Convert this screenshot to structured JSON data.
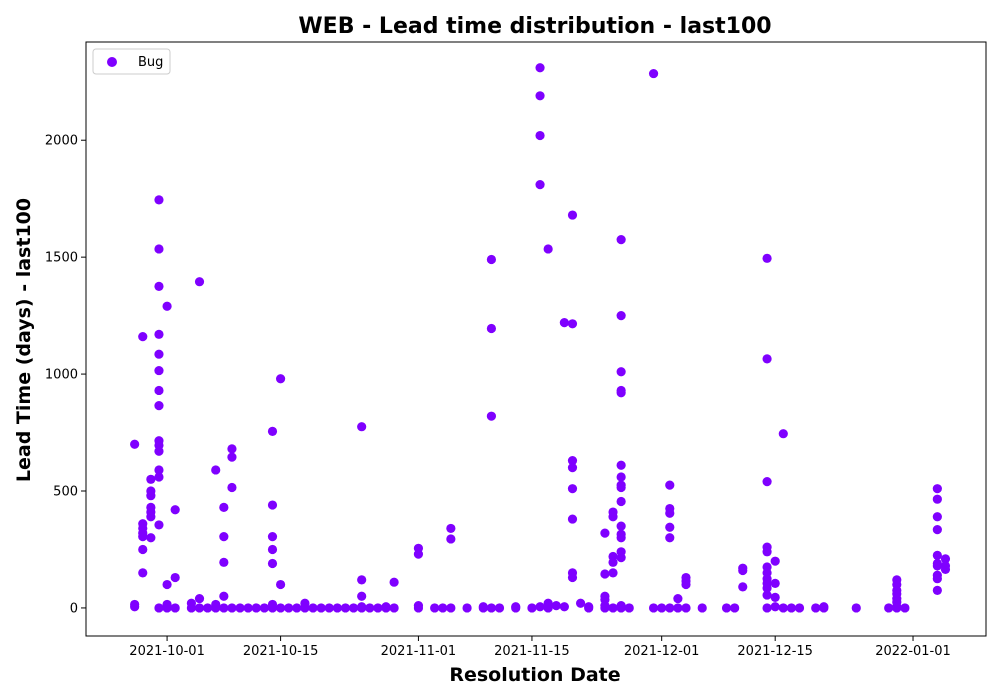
{
  "chart_data": {
    "type": "scatter",
    "title": "WEB - Lead time distribution - last100",
    "xlabel": "Resolution Date",
    "ylabel": "Lead Time (days) - last100",
    "x_type": "date",
    "xlim": [
      "2021-09-21",
      "2022-01-10"
    ],
    "ylim": [
      -120,
      2420
    ],
    "x_ticks": [
      "2021-10-01",
      "2021-10-15",
      "2021-11-01",
      "2021-11-15",
      "2021-12-01",
      "2021-12-15",
      "2022-01-01"
    ],
    "y_ticks": [
      0,
      500,
      1000,
      1500,
      2000
    ],
    "grid": false,
    "legend": {
      "position": "top-left",
      "entries": [
        "Bug"
      ]
    },
    "series": [
      {
        "name": "Bug",
        "color": "#7f00ff",
        "points": [
          [
            "2021-09-27",
            700
          ],
          [
            "2021-09-27",
            15
          ],
          [
            "2021-09-27",
            5
          ],
          [
            "2021-09-28",
            1160
          ],
          [
            "2021-09-28",
            360
          ],
          [
            "2021-09-28",
            340
          ],
          [
            "2021-09-28",
            320
          ],
          [
            "2021-09-28",
            305
          ],
          [
            "2021-09-28",
            250
          ],
          [
            "2021-09-28",
            150
          ],
          [
            "2021-09-29",
            550
          ],
          [
            "2021-09-29",
            500
          ],
          [
            "2021-09-29",
            480
          ],
          [
            "2021-09-29",
            430
          ],
          [
            "2021-09-29",
            410
          ],
          [
            "2021-09-29",
            390
          ],
          [
            "2021-09-29",
            300
          ],
          [
            "2021-09-30",
            1745
          ],
          [
            "2021-09-30",
            1535
          ],
          [
            "2021-09-30",
            1375
          ],
          [
            "2021-09-30",
            1170
          ],
          [
            "2021-09-30",
            1085
          ],
          [
            "2021-09-30",
            1015
          ],
          [
            "2021-09-30",
            930
          ],
          [
            "2021-09-30",
            865
          ],
          [
            "2021-09-30",
            715
          ],
          [
            "2021-09-30",
            695
          ],
          [
            "2021-09-30",
            670
          ],
          [
            "2021-09-30",
            590
          ],
          [
            "2021-09-30",
            560
          ],
          [
            "2021-09-30",
            355
          ],
          [
            "2021-09-30",
            0
          ],
          [
            "2021-10-01",
            1290
          ],
          [
            "2021-10-01",
            100
          ],
          [
            "2021-10-01",
            15
          ],
          [
            "2021-10-01",
            0
          ],
          [
            "2021-10-02",
            420
          ],
          [
            "2021-10-02",
            130
          ],
          [
            "2021-10-02",
            0
          ],
          [
            "2021-10-04",
            20
          ],
          [
            "2021-10-04",
            0
          ],
          [
            "2021-10-05",
            1395
          ],
          [
            "2021-10-05",
            40
          ],
          [
            "2021-10-05",
            0
          ],
          [
            "2021-10-06",
            0
          ],
          [
            "2021-10-07",
            590
          ],
          [
            "2021-10-07",
            15
          ],
          [
            "2021-10-07",
            0
          ],
          [
            "2021-10-08",
            430
          ],
          [
            "2021-10-08",
            305
          ],
          [
            "2021-10-08",
            195
          ],
          [
            "2021-10-08",
            50
          ],
          [
            "2021-10-08",
            0
          ],
          [
            "2021-10-09",
            680
          ],
          [
            "2021-10-09",
            645
          ],
          [
            "2021-10-09",
            515
          ],
          [
            "2021-10-09",
            0
          ],
          [
            "2021-10-10",
            0
          ],
          [
            "2021-10-11",
            0
          ],
          [
            "2021-10-12",
            0
          ],
          [
            "2021-10-13",
            0
          ],
          [
            "2021-10-14",
            755
          ],
          [
            "2021-10-14",
            440
          ],
          [
            "2021-10-14",
            305
          ],
          [
            "2021-10-14",
            250
          ],
          [
            "2021-10-14",
            190
          ],
          [
            "2021-10-14",
            15
          ],
          [
            "2021-10-14",
            0
          ],
          [
            "2021-10-15",
            980
          ],
          [
            "2021-10-15",
            100
          ],
          [
            "2021-10-15",
            0
          ],
          [
            "2021-10-16",
            0
          ],
          [
            "2021-10-17",
            0
          ],
          [
            "2021-10-18",
            20
          ],
          [
            "2021-10-18",
            0
          ],
          [
            "2021-10-19",
            0
          ],
          [
            "2021-10-20",
            0
          ],
          [
            "2021-10-21",
            0
          ],
          [
            "2021-10-22",
            0
          ],
          [
            "2021-10-23",
            0
          ],
          [
            "2021-10-24",
            0
          ],
          [
            "2021-10-25",
            775
          ],
          [
            "2021-10-25",
            120
          ],
          [
            "2021-10-25",
            50
          ],
          [
            "2021-10-25",
            5
          ],
          [
            "2021-10-25",
            0
          ],
          [
            "2021-10-26",
            0
          ],
          [
            "2021-10-27",
            0
          ],
          [
            "2021-10-28",
            5
          ],
          [
            "2021-10-28",
            0
          ],
          [
            "2021-10-29",
            110
          ],
          [
            "2021-10-29",
            0
          ],
          [
            "2021-11-01",
            255
          ],
          [
            "2021-11-01",
            230
          ],
          [
            "2021-11-01",
            10
          ],
          [
            "2021-11-01",
            0
          ],
          [
            "2021-11-03",
            0
          ],
          [
            "2021-11-04",
            0
          ],
          [
            "2021-11-05",
            340
          ],
          [
            "2021-11-05",
            295
          ],
          [
            "2021-11-05",
            0
          ],
          [
            "2021-11-07",
            0
          ],
          [
            "2021-11-09",
            5
          ],
          [
            "2021-11-09",
            0
          ],
          [
            "2021-11-10",
            1490
          ],
          [
            "2021-11-10",
            1195
          ],
          [
            "2021-11-10",
            820
          ],
          [
            "2021-11-10",
            0
          ],
          [
            "2021-11-11",
            0
          ],
          [
            "2021-11-13",
            5
          ],
          [
            "2021-11-13",
            0
          ],
          [
            "2021-11-15",
            0
          ],
          [
            "2021-11-16",
            2310
          ],
          [
            "2021-11-16",
            2190
          ],
          [
            "2021-11-16",
            2020
          ],
          [
            "2021-11-16",
            1810
          ],
          [
            "2021-11-16",
            5
          ],
          [
            "2021-11-17",
            1535
          ],
          [
            "2021-11-17",
            20
          ],
          [
            "2021-11-17",
            0
          ],
          [
            "2021-11-18",
            10
          ],
          [
            "2021-11-19",
            1220
          ],
          [
            "2021-11-19",
            5
          ],
          [
            "2021-11-20",
            1680
          ],
          [
            "2021-11-20",
            1215
          ],
          [
            "2021-11-20",
            630
          ],
          [
            "2021-11-20",
            600
          ],
          [
            "2021-11-20",
            510
          ],
          [
            "2021-11-20",
            380
          ],
          [
            "2021-11-20",
            150
          ],
          [
            "2021-11-20",
            130
          ],
          [
            "2021-11-21",
            20
          ],
          [
            "2021-11-22",
            5
          ],
          [
            "2021-11-22",
            0
          ],
          [
            "2021-11-24",
            320
          ],
          [
            "2021-11-24",
            145
          ],
          [
            "2021-11-24",
            50
          ],
          [
            "2021-11-24",
            35
          ],
          [
            "2021-11-24",
            10
          ],
          [
            "2021-11-24",
            0
          ],
          [
            "2021-11-25",
            410
          ],
          [
            "2021-11-25",
            390
          ],
          [
            "2021-11-25",
            220
          ],
          [
            "2021-11-25",
            195
          ],
          [
            "2021-11-25",
            150
          ],
          [
            "2021-11-25",
            0
          ],
          [
            "2021-11-26",
            1575
          ],
          [
            "2021-11-26",
            1250
          ],
          [
            "2021-11-26",
            1010
          ],
          [
            "2021-11-26",
            930
          ],
          [
            "2021-11-26",
            920
          ],
          [
            "2021-11-26",
            610
          ],
          [
            "2021-11-26",
            560
          ],
          [
            "2021-11-26",
            525
          ],
          [
            "2021-11-26",
            515
          ],
          [
            "2021-11-26",
            455
          ],
          [
            "2021-11-26",
            350
          ],
          [
            "2021-11-26",
            315
          ],
          [
            "2021-11-26",
            300
          ],
          [
            "2021-11-26",
            240
          ],
          [
            "2021-11-26",
            215
          ],
          [
            "2021-11-26",
            10
          ],
          [
            "2021-11-26",
            0
          ],
          [
            "2021-11-27",
            0
          ],
          [
            "2021-11-30",
            2285
          ],
          [
            "2021-11-30",
            0
          ],
          [
            "2021-12-01",
            0
          ],
          [
            "2021-12-02",
            525
          ],
          [
            "2021-12-02",
            425
          ],
          [
            "2021-12-02",
            405
          ],
          [
            "2021-12-02",
            345
          ],
          [
            "2021-12-02",
            300
          ],
          [
            "2021-12-02",
            0
          ],
          [
            "2021-12-03",
            40
          ],
          [
            "2021-12-03",
            0
          ],
          [
            "2021-12-04",
            130
          ],
          [
            "2021-12-04",
            115
          ],
          [
            "2021-12-04",
            100
          ],
          [
            "2021-12-04",
            0
          ],
          [
            "2021-12-06",
            0
          ],
          [
            "2021-12-09",
            0
          ],
          [
            "2021-12-10",
            0
          ],
          [
            "2021-12-11",
            170
          ],
          [
            "2021-12-11",
            160
          ],
          [
            "2021-12-11",
            90
          ],
          [
            "2021-12-14",
            1495
          ],
          [
            "2021-12-14",
            1065
          ],
          [
            "2021-12-14",
            540
          ],
          [
            "2021-12-14",
            260
          ],
          [
            "2021-12-14",
            240
          ],
          [
            "2021-12-14",
            175
          ],
          [
            "2021-12-14",
            150
          ],
          [
            "2021-12-14",
            125
          ],
          [
            "2021-12-14",
            105
          ],
          [
            "2021-12-14",
            85
          ],
          [
            "2021-12-14",
            55
          ],
          [
            "2021-12-14",
            0
          ],
          [
            "2021-12-15",
            200
          ],
          [
            "2021-12-15",
            105
          ],
          [
            "2021-12-15",
            45
          ],
          [
            "2021-12-15",
            5
          ],
          [
            "2021-12-16",
            745
          ],
          [
            "2021-12-16",
            0
          ],
          [
            "2021-12-17",
            0
          ],
          [
            "2021-12-18",
            0
          ],
          [
            "2021-12-20",
            0
          ],
          [
            "2021-12-21",
            5
          ],
          [
            "2021-12-21",
            0
          ],
          [
            "2021-12-25",
            0
          ],
          [
            "2021-12-29",
            0
          ],
          [
            "2021-12-30",
            120
          ],
          [
            "2021-12-30",
            100
          ],
          [
            "2021-12-30",
            75
          ],
          [
            "2021-12-30",
            60
          ],
          [
            "2021-12-30",
            40
          ],
          [
            "2021-12-30",
            25
          ],
          [
            "2021-12-30",
            5
          ],
          [
            "2021-12-30",
            0
          ],
          [
            "2021-12-31",
            0
          ],
          [
            "2022-01-04",
            510
          ],
          [
            "2022-01-04",
            465
          ],
          [
            "2022-01-04",
            390
          ],
          [
            "2022-01-04",
            335
          ],
          [
            "2022-01-04",
            225
          ],
          [
            "2022-01-04",
            190
          ],
          [
            "2022-01-04",
            180
          ],
          [
            "2022-01-04",
            140
          ],
          [
            "2022-01-04",
            125
          ],
          [
            "2022-01-04",
            75
          ],
          [
            "2022-01-05",
            210
          ],
          [
            "2022-01-05",
            180
          ],
          [
            "2022-01-05",
            165
          ]
        ]
      }
    ]
  }
}
